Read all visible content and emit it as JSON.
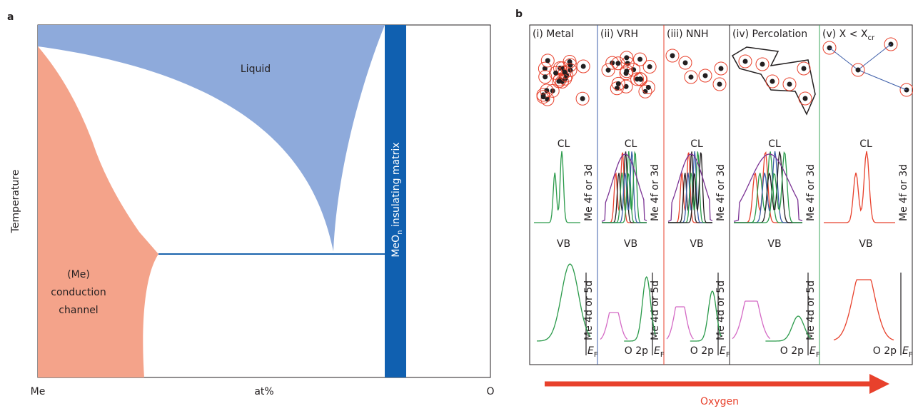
{
  "panel_a": {
    "label": "a",
    "y_axis_label": "Temperature",
    "x_labels": [
      "Me",
      "at%",
      "O"
    ],
    "liquid": "Liquid",
    "channel": [
      "(Me)",
      "conduction",
      "channel"
    ],
    "matrix": {
      "text": "MeO",
      "sub": "n",
      "rest": " insulating matrix"
    }
  },
  "panel_b": {
    "label": "b",
    "arrow_label": "Oxygen",
    "columns": [
      {
        "header": {
          "text": "(i) Metal"
        },
        "cl": "CL",
        "cl_orbital": "Me 4f or 3d",
        "vb": "VB",
        "vb_orbital": "Me 4d or 5d",
        "ef": {
          "text": "E",
          "sub": "F"
        }
      },
      {
        "header": {
          "text": "(ii) VRH"
        },
        "cl": "CL",
        "cl_orbital": "Me 4f or 3d",
        "vb": "VB",
        "vb_orbital": "Me 4d or 5d",
        "o2p": "O 2p",
        "ef": {
          "text": "E",
          "sub": "F"
        }
      },
      {
        "header": {
          "text": "(iii) NNH"
        },
        "cl": "CL",
        "cl_orbital": "Me 4f or 3d",
        "vb": "VB",
        "vb_orbital": "Me 4d or 5d",
        "o2p": "O 2p",
        "ef": {
          "text": "E",
          "sub": "F"
        }
      },
      {
        "header": {
          "text": "(iv) Percolation"
        },
        "cl": "CL",
        "cl_orbital": "Me 4f or 3d",
        "vb": "VB",
        "vb_orbital": "Me 4d or 5d",
        "o2p": "O 2p",
        "ef": {
          "text": "E",
          "sub": "F"
        }
      },
      {
        "header": {
          "text": "(v) X < X",
          "sub": "cr"
        },
        "cl": "CL",
        "cl_orbital": "Me 4f or 3d",
        "vb": "VB",
        "o2p": "O 2p",
        "ef": {
          "text": "E",
          "sub": "F"
        }
      }
    ]
  }
}
